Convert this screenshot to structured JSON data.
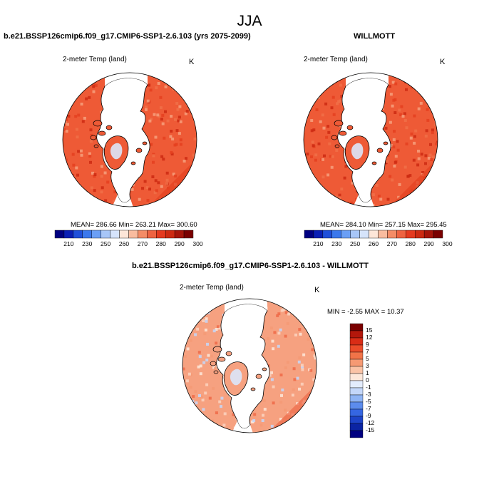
{
  "title": "JJA",
  "panels": [
    {
      "id": "model",
      "title": "b.e21.BSSP126cmip6.f09_g17.CMIP6-SSP1-2.6.103 (yrs 2075-2099)",
      "variable": "2-meter Temp (land)",
      "units": "K",
      "stats": "MEAN= 286.66  Min= 263.21  Max= 300.60",
      "colorbar_ticks": [
        "210",
        "230",
        "250",
        "260",
        "270",
        "280",
        "290",
        "300"
      ]
    },
    {
      "id": "obs",
      "title": "WILLMOTT",
      "variable": "2-meter Temp (land)",
      "units": "K",
      "stats": "MEAN= 284.10  Min= 257.15  Max= 295.45",
      "colorbar_ticks": [
        "210",
        "230",
        "250",
        "260",
        "270",
        "280",
        "290",
        "300"
      ]
    },
    {
      "id": "diff",
      "title": "b.e21.BSSP126cmip6.f09_g17.CMIP6-SSP1-2.6.103 - WILLMOTT",
      "variable": "2-meter Temp (land)",
      "units": "K",
      "stats": "MIN =  -2.55 MAX =  10.37",
      "colorbar_ticks": [
        "15",
        "12",
        "9",
        "7",
        "5",
        "3",
        "1",
        "0",
        "-1",
        "-3",
        "-5",
        "-7",
        "-9",
        "-12",
        "-15"
      ]
    }
  ],
  "colors": {
    "abs_scale": [
      "#000080",
      "#0a1fb4",
      "#1f4fd9",
      "#3b78ec",
      "#6b9ff5",
      "#a7c6f8",
      "#d6e4fb",
      "#fde6d8",
      "#f9bc9f",
      "#f48c66",
      "#ee6341",
      "#e43a1f",
      "#cc2a12",
      "#a5150a",
      "#7a0000"
    ],
    "diff_scale": [
      "#7a0000",
      "#b3170b",
      "#d92c16",
      "#eb4c2a",
      "#f17348",
      "#f69a73",
      "#fac3a6",
      "#fde7d9",
      "#e3ecfc",
      "#c4d7f9",
      "#8fb4f4",
      "#5c8ced",
      "#3566e2",
      "#1d43c8",
      "#0b24a3",
      "#000080"
    ],
    "land_warm": "#ee5a36",
    "land_hot": "#e4401f",
    "diff_land": "#f6a180",
    "ice": "#ffffff"
  }
}
